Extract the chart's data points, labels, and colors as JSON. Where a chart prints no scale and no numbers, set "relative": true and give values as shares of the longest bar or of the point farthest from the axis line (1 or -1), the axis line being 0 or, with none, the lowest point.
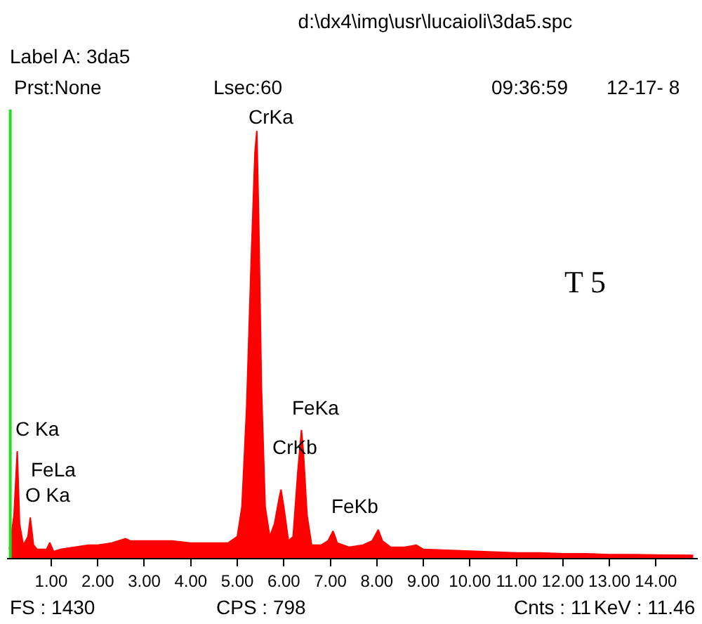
{
  "chart_data": {
    "type": "area",
    "title": "d:\\dx4\\img\\usr\\lucaioli\\3da5.spc",
    "relative": true,
    "color": "#ff0000",
    "legend": false,
    "x": [
      0.1,
      0.2,
      0.27,
      0.32,
      0.4,
      0.5,
      0.55,
      0.62,
      0.7,
      0.8,
      0.9,
      0.97,
      1.05,
      1.2,
      1.5,
      1.8,
      2.0,
      2.3,
      2.6,
      2.7,
      3.0,
      3.3,
      3.6,
      4.0,
      4.4,
      4.8,
      5.0,
      5.1,
      5.2,
      5.3,
      5.38,
      5.42,
      5.46,
      5.52,
      5.6,
      5.7,
      5.8,
      5.9,
      5.94,
      6.0,
      6.1,
      6.2,
      6.3,
      6.38,
      6.42,
      6.5,
      6.6,
      6.8,
      6.95,
      7.06,
      7.15,
      7.4,
      7.7,
      7.9,
      8.03,
      8.12,
      8.3,
      8.6,
      8.85,
      9.0,
      9.5,
      10.0,
      10.5,
      11.0,
      11.5,
      12.0,
      12.5,
      13.0,
      13.5,
      14.0,
      14.8
    ],
    "values": [
      0.02,
      0.1,
      0.25,
      0.08,
      0.03,
      0.05,
      0.095,
      0.03,
      0.02,
      0.02,
      0.02,
      0.036,
      0.015,
      0.02,
      0.025,
      0.03,
      0.03,
      0.035,
      0.045,
      0.04,
      0.04,
      0.04,
      0.04,
      0.035,
      0.035,
      0.035,
      0.05,
      0.12,
      0.35,
      0.7,
      0.95,
      1,
      0.8,
      0.4,
      0.12,
      0.05,
      0.08,
      0.14,
      0.16,
      0.12,
      0.04,
      0.05,
      0.2,
      0.3,
      0.25,
      0.1,
      0.03,
      0.03,
      0.04,
      0.063,
      0.035,
      0.025,
      0.03,
      0.04,
      0.066,
      0.04,
      0.025,
      0.025,
      0.03,
      0.02,
      0.018,
      0.016,
      0.014,
      0.012,
      0.012,
      0.01,
      0.01,
      0.008,
      0.008,
      0.007,
      0.006
    ],
    "xlim": [
      0.05,
      14.9
    ],
    "xticks": [
      {
        "value": 1,
        "label": "1.00"
      },
      {
        "value": 2,
        "label": "2.00"
      },
      {
        "value": 3,
        "label": "3.00"
      },
      {
        "value": 4,
        "label": "4.00"
      },
      {
        "value": 5,
        "label": "5.00"
      },
      {
        "value": 6,
        "label": "6.00"
      },
      {
        "value": 7,
        "label": "7.00"
      },
      {
        "value": 8,
        "label": "8.00"
      },
      {
        "value": 9,
        "label": "9.00"
      },
      {
        "value": 10,
        "label": "10.00"
      },
      {
        "value": 11,
        "label": "11.00"
      },
      {
        "value": 12,
        "label": "12.00"
      },
      {
        "value": 13,
        "label": "13.00"
      },
      {
        "value": 14,
        "label": "14.00"
      }
    ],
    "ref_lines": [
      {
        "axis": "x",
        "value": 0.12,
        "color": "#22dd22"
      }
    ],
    "annotations": [
      {
        "text": "CrKa",
        "x": 5.42,
        "y": 1
      },
      {
        "text": "FeKa",
        "x": 6.38,
        "y": 0.3
      },
      {
        "text": "CrKb",
        "x": 5.94,
        "y": 0.16
      },
      {
        "text": "FeKb",
        "x": 7.06,
        "y": 0.063
      },
      {
        "text": "C Ka",
        "x": 0.27,
        "y": 0.25
      },
      {
        "text": "FeLa",
        "x": 0.55,
        "y": 0.095
      },
      {
        "text": "O Ka",
        "x": 0.55,
        "y": 0.095
      },
      "Label A: 3da5",
      "Prst:None",
      "Lsec:60",
      "09:36:59",
      "12-17- 8",
      "T 5",
      "FS : 1430",
      "CPS : 798",
      "Cnts : 11",
      "KeV : 11.46"
    ]
  }
}
